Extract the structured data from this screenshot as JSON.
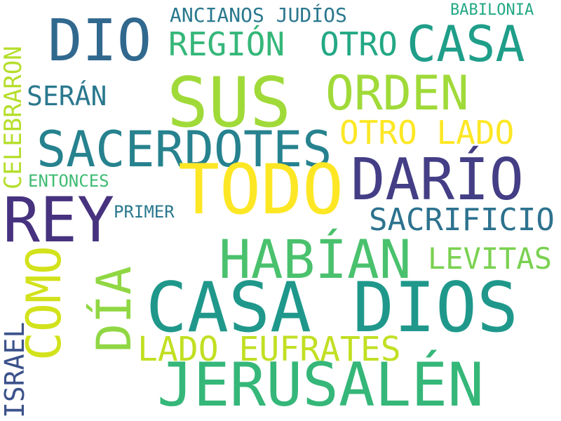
{
  "words": [
    {
      "text": "DIO",
      "color": "#31688e"
    },
    {
      "text": "ANCIANOS JUDÍOS",
      "color": "#2a788e"
    },
    {
      "text": "BABILONIA",
      "color": "#22a884"
    },
    {
      "text": "REGIÓN",
      "color": "#35b779"
    },
    {
      "text": "OTRO",
      "color": "#22a884"
    },
    {
      "text": "CASA",
      "color": "#1f9e89"
    },
    {
      "text": "CELEBRARON",
      "color": "#b5de2b"
    },
    {
      "text": "SERÁN",
      "color": "#2a788e"
    },
    {
      "text": "SUS",
      "color": "#a0da39"
    },
    {
      "text": "ORDEN",
      "color": "#a0da39"
    },
    {
      "text": "OTRO LADO",
      "color": "#fde725"
    },
    {
      "text": "SACERDOTES",
      "color": "#26828e"
    },
    {
      "text": "ENTONCES",
      "color": "#3fbc73"
    },
    {
      "text": "TODO",
      "color": "#fde725"
    },
    {
      "text": "DARÍO",
      "color": "#433e85"
    },
    {
      "text": "REY",
      "color": "#46327e"
    },
    {
      "text": "PRIMER",
      "color": "#2a788e"
    },
    {
      "text": "SACRIFICIO",
      "color": "#2c728e"
    },
    {
      "text": "HABÍAN",
      "color": "#4ac16d"
    },
    {
      "text": "LEVITAS",
      "color": "#7ad151"
    },
    {
      "text": "COMO",
      "color": "#d2e21b"
    },
    {
      "text": "DÍA",
      "color": "#90d743"
    },
    {
      "text": "CASA DIOS",
      "color": "#1f988b"
    },
    {
      "text": "ISRAEL",
      "color": "#3b528b"
    },
    {
      "text": "LADO EUFRATES",
      "color": "#c2df23"
    },
    {
      "text": "JERUSALÉN",
      "color": "#35b779"
    }
  ]
}
